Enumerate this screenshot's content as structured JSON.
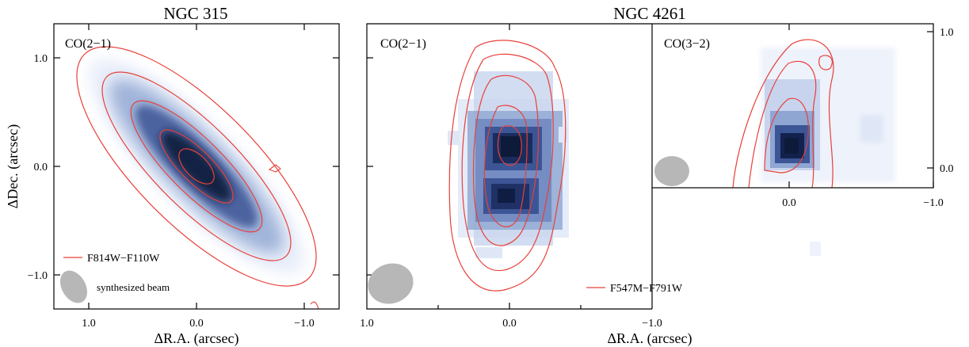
{
  "colors": {
    "contour": "#e8403a",
    "intensity": "#0d1a3a",
    "intensity_low": "#dfe7f7",
    "beam": "#b7b7b7",
    "axis": "#000000",
    "background": "#ffffff"
  },
  "titles": {
    "left": "NGC 315",
    "right": "NGC 4261"
  },
  "axes": {
    "xlabel_left": "ΔR.A. (arcsec)",
    "xlabel_right": "ΔR.A. (arcsec)",
    "ylabel": "ΔDec. (arcsec)"
  },
  "panels": [
    {
      "id": "ngc315-co21",
      "label": "CO(2−1)",
      "legend": "F814W−F110W",
      "beam_label": "synthesized beam",
      "x_ticks": [
        "1.0",
        "0.0",
        "−1.0"
      ],
      "y_ticks": [
        "1.0",
        "0.0",
        "−1.0"
      ]
    },
    {
      "id": "ngc4261-co21",
      "label": "CO(2−1)",
      "legend": "F547M−F791W",
      "x_ticks": [
        "1.0",
        "0.0",
        "−1.0"
      ]
    },
    {
      "id": "ngc4261-co32",
      "label": "CO(3−2)",
      "x_ticks": [
        "0.0",
        "−1.0"
      ],
      "y_ticks": [
        "1.0",
        "0.0"
      ]
    }
  ],
  "chart_data": [
    {
      "type": "heatmap",
      "title": "NGC 315",
      "panel_label": "CO(2−1)",
      "xlabel": "ΔR.A. (arcsec)",
      "ylabel": "ΔDec. (arcsec)",
      "xlim": [
        1.3,
        -1.3
      ],
      "ylim": [
        -1.3,
        1.3
      ],
      "x_reversed": true,
      "emission": {
        "center": [
          0.0,
          0.0
        ],
        "pa_deg": 45,
        "major_fwhm": 2.0,
        "minor_fwhm": 0.35
      },
      "contours": [
        {
          "a": 1.45,
          "b": 0.55
        },
        {
          "a": 1.15,
          "b": 0.38
        },
        {
          "a": 0.8,
          "b": 0.25
        },
        {
          "a": 0.45,
          "b": 0.15
        },
        {
          "a": 0.2,
          "b": 0.1
        }
      ],
      "contour_legend": "F814W−F110W",
      "beam": {
        "x": 1.13,
        "y": -1.12,
        "major": 0.35,
        "minor": 0.22,
        "annotation": "synthesized beam"
      }
    },
    {
      "type": "heatmap",
      "title": "NGC 4261",
      "panel_label": "CO(2−1)",
      "xlabel": "ΔR.A. (arcsec)",
      "xlim": [
        1.0,
        -1.0
      ],
      "ylim": [
        -1.0,
        1.0
      ],
      "x_reversed": true,
      "emission": {
        "peaks": [
          [
            0.0,
            0.2
          ],
          [
            0.05,
            -0.3
          ]
        ]
      },
      "contour_legend": "F547M−F791W",
      "beam": {
        "x": 0.8,
        "y": -0.9,
        "major": 0.3,
        "minor": 0.22
      }
    },
    {
      "type": "heatmap",
      "title": "NGC 4261",
      "panel_label": "CO(3−2)",
      "xlim": [
        0.6,
        -1.0
      ],
      "ylim": [
        -0.2,
        1.1
      ],
      "x_reversed": true,
      "emission": {
        "peaks": [
          [
            0.0,
            0.17
          ]
        ]
      },
      "beam": {
        "x": 0.5,
        "y": 0.0,
        "major": 0.14,
        "minor": 0.12
      }
    }
  ]
}
